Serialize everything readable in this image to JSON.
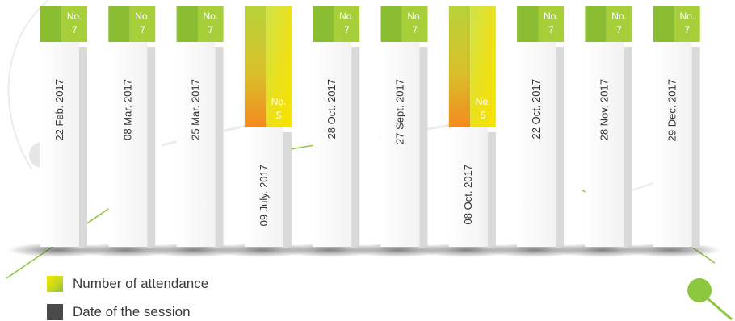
{
  "chart_data": {
    "type": "bar",
    "categories": [
      "22 Feb. 2017",
      "08 Mar. 2017",
      "25 Mar. 2017",
      "09 July. 2017",
      "28 Oct. 2017",
      "27 Sept. 2017",
      "08 Oct. 2017",
      "22 Oct. 2017",
      "28 Nov. 2017",
      "29 Dec. 2017"
    ],
    "values": [
      7,
      7,
      7,
      5,
      7,
      7,
      5,
      7,
      7,
      7
    ],
    "value_prefix": "No.",
    "legend": [
      "Number of attendance",
      "Date of the session"
    ],
    "colors": {
      "high_attendance_top": "#8bbd32",
      "high_attendance_face": "#a6cf3a",
      "low_attendance_top": "#c9dc35",
      "low_attendance_bottom": "#f28a1e",
      "date_column": "#f2f2f2",
      "date_column_side": "#d9d9d9",
      "accent_green": "#8dc63f",
      "date_text": "#333333"
    }
  },
  "legend": {
    "attendance_label": "Number of attendance",
    "date_label": "Date of the session"
  }
}
